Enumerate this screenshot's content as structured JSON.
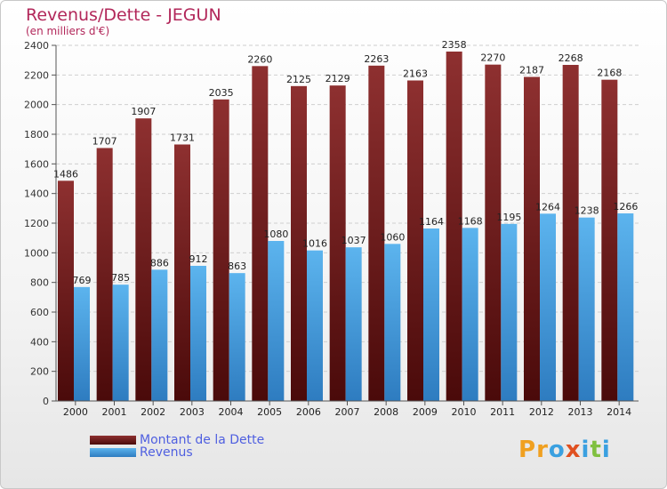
{
  "header": {
    "title": "Revenus/Dette - JEGUN",
    "subtitle": "(en milliers d'€)"
  },
  "legend": {
    "items": [
      {
        "label": "Montant de la Dette",
        "color": "#7a1c1c"
      },
      {
        "label": "Revenus",
        "color": "#4aa3e6"
      }
    ]
  },
  "logo": {
    "letters": [
      {
        "char": "P",
        "color": "#f0a020"
      },
      {
        "char": "r",
        "color": "#f0a020"
      },
      {
        "char": "o",
        "color": "#3aa0e0"
      },
      {
        "char": "x",
        "color": "#e05020"
      },
      {
        "char": "i",
        "color": "#3aa0e0"
      },
      {
        "char": "t",
        "color": "#80c040"
      },
      {
        "char": "i",
        "color": "#3aa0e0"
      }
    ]
  },
  "chart_data": {
    "type": "bar",
    "title": "Revenus/Dette - JEGUN",
    "subtitle": "(en milliers d'€)",
    "categories": [
      "2000",
      "2001",
      "2002",
      "2003",
      "2004",
      "2005",
      "2006",
      "2007",
      "2008",
      "2009",
      "2010",
      "2011",
      "2012",
      "2013",
      "2014"
    ],
    "series": [
      {
        "name": "Montant de la Dette",
        "color": "#7a1c1c",
        "values": [
          1486,
          1707,
          1907,
          1731,
          2035,
          2260,
          2125,
          2129,
          2263,
          2163,
          2358,
          2270,
          2187,
          2268,
          2168
        ]
      },
      {
        "name": "Revenus",
        "color": "#4aa3e6",
        "values": [
          769,
          785,
          886,
          912,
          863,
          1080,
          1016,
          1037,
          1060,
          1164,
          1168,
          1195,
          1264,
          1238,
          1266
        ]
      }
    ],
    "ylim": [
      0,
      2400
    ],
    "yticks": [
      0,
      200,
      400,
      600,
      800,
      1000,
      1200,
      1400,
      1600,
      1800,
      2000,
      2200,
      2400
    ],
    "grid": true,
    "legend_position": "bottom-left"
  }
}
